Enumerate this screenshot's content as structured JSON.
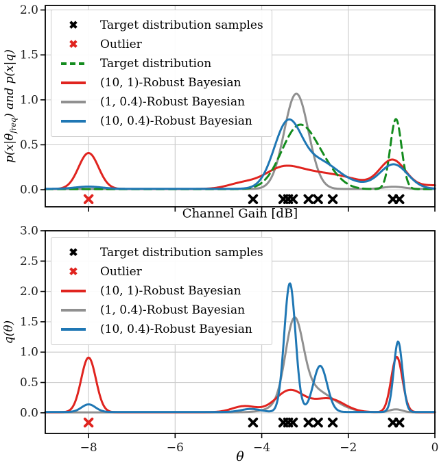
{
  "figure": {
    "top_xlabel": "Channel Gain [dB]",
    "bottom_xlabel": "θ",
    "top_ylabel": {
      "pre": "p(x|θ",
      "sub": "freq",
      "post": ") and p(x|q)"
    },
    "bottom_ylabel": "q(θ)"
  },
  "colors": {
    "red": "#e0241f",
    "gray": "#909090",
    "blue": "#1f77b4",
    "green": "#148c1e",
    "black": "#000000",
    "grid": "#cdcdcd",
    "spine": "#000000",
    "tick_text": "#1c1c1c"
  },
  "chart_data": [
    {
      "id": "top",
      "type": "line",
      "title": "",
      "xlabel": "Channel Gain [dB]",
      "ylabel": "p(x|θ_freq) and p(x|q)",
      "xlim": [
        -9,
        0
      ],
      "ylim": [
        -0.19,
        2.05
      ],
      "xticks": [
        -8,
        -6,
        -4,
        -2,
        0
      ],
      "xtick_labels": null,
      "yticks": [
        0.0,
        0.5,
        1.0,
        1.5,
        2.0
      ],
      "ytick_labels": [
        "0.0",
        "0.5",
        "1.0",
        "1.5",
        "2.0"
      ],
      "grid": true,
      "legend_position": "upper-left",
      "legend": [
        {
          "marker": "x",
          "color": "#000000",
          "label": "Target distribution samples"
        },
        {
          "marker": "x",
          "color": "#e0241f",
          "label": "Outlier"
        },
        {
          "marker": "dash",
          "color": "#148c1e",
          "label": "Target distribution"
        },
        {
          "marker": "line",
          "color": "#e0241f",
          "label": "(10, 1)-Robust Bayesian"
        },
        {
          "marker": "line",
          "color": "#909090",
          "label": "(1, 0.4)-Robust Bayesian"
        },
        {
          "marker": "line",
          "color": "#1f77b4",
          "label": "(10, 0.4)-Robust Bayesian"
        }
      ],
      "series": [
        {
          "name": "(1, 0.4)-Robust Bayesian",
          "color": "#909090",
          "style": "solid",
          "base": 0.008,
          "gaussians": [
            {
              "mu": -3.2,
              "amp": 1.06,
              "sigma": 0.28
            },
            {
              "mu": -0.95,
              "amp": 0.025,
              "sigma": 0.25
            }
          ],
          "peaks": [
            {
              "x": -3.2,
              "y": 1.07
            }
          ]
        },
        {
          "name": "(10, 1)-Robust Bayesian",
          "color": "#e0241f",
          "style": "solid",
          "base": 0.008,
          "gaussians": [
            {
              "mu": -8.0,
              "amp": 0.4,
              "sigma": 0.23
            },
            {
              "mu": -4.45,
              "amp": 0.06,
              "sigma": 0.35
            },
            {
              "mu": -3.55,
              "amp": 0.2,
              "sigma": 0.42
            },
            {
              "mu": -2.7,
              "amp": 0.16,
              "sigma": 0.55
            },
            {
              "mu": -1.9,
              "amp": 0.06,
              "sigma": 0.4
            },
            {
              "mu": -0.98,
              "amp": 0.32,
              "sigma": 0.3
            },
            {
              "mu": 0.0,
              "amp": 0.04,
              "sigma": 0.4
            }
          ],
          "peaks": [
            {
              "x": -8.0,
              "y": 0.4
            },
            {
              "x": -3.5,
              "y": 0.26
            },
            {
              "x": -0.98,
              "y": 0.35
            }
          ]
        },
        {
          "name": "Target distribution",
          "color": "#148c1e",
          "style": "dashed",
          "base": 0.006,
          "gaussians": [
            {
              "mu": -3.15,
              "amp": 0.68,
              "sigma": 0.4
            },
            {
              "mu": -2.55,
              "amp": 0.15,
              "sigma": 0.35
            },
            {
              "mu": -0.9,
              "amp": 0.78,
              "sigma": 0.13
            }
          ],
          "peaks": [
            {
              "x": -3.15,
              "y": 0.72
            },
            {
              "x": -0.9,
              "y": 0.78
            }
          ]
        },
        {
          "name": "(10, 0.4)-Robust Bayesian",
          "color": "#1f77b4",
          "style": "solid",
          "base": 0.01,
          "gaussians": [
            {
              "mu": -8.0,
              "amp": 0.025,
              "sigma": 0.3
            },
            {
              "mu": -3.4,
              "amp": 0.72,
              "sigma": 0.32
            },
            {
              "mu": -2.65,
              "amp": 0.28,
              "sigma": 0.4
            },
            {
              "mu": -1.9,
              "amp": 0.05,
              "sigma": 0.4
            },
            {
              "mu": -0.95,
              "amp": 0.27,
              "sigma": 0.32
            }
          ],
          "peaks": [
            {
              "x": -3.38,
              "y": 0.79
            },
            {
              "x": -0.95,
              "y": 0.3
            }
          ]
        }
      ],
      "samples": {
        "label": "Target distribution samples",
        "color": "#000000",
        "y": -0.105,
        "x": [
          -4.2,
          -3.5,
          -3.39,
          -3.28,
          -2.92,
          -2.7,
          -2.36,
          -0.97,
          -0.82
        ]
      },
      "outlier": {
        "label": "Outlier",
        "color": "#e0241f",
        "x": -8.0,
        "y": -0.105
      }
    },
    {
      "id": "bottom",
      "type": "line",
      "title": "",
      "xlabel": "θ",
      "ylabel": "q(θ)",
      "xlim": [
        -9,
        0
      ],
      "ylim": [
        -0.34,
        3.0
      ],
      "xticks": [
        -8,
        -6,
        -4,
        -2,
        0
      ],
      "xtick_labels": [
        "−8",
        "−6",
        "−4",
        "−2",
        "0"
      ],
      "yticks": [
        0.0,
        0.5,
        1.0,
        1.5,
        2.0,
        2.5,
        3.0
      ],
      "ytick_labels": [
        "0.0",
        "0.5",
        "1.0",
        "1.5",
        "2.0",
        "2.5",
        "3.0"
      ],
      "grid": true,
      "legend_position": "upper-left",
      "legend": [
        {
          "marker": "x",
          "color": "#000000",
          "label": "Target distribution samples"
        },
        {
          "marker": "x",
          "color": "#e0241f",
          "label": "Outlier"
        },
        {
          "marker": "line",
          "color": "#e0241f",
          "label": "(10, 1)-Robust Bayesian"
        },
        {
          "marker": "line",
          "color": "#909090",
          "label": "(1, 0.4)-Robust Bayesian"
        },
        {
          "marker": "line",
          "color": "#1f77b4",
          "label": "(10, 0.4)-Robust Bayesian"
        }
      ],
      "series": [
        {
          "name": "(1, 0.4)-Robust Bayesian",
          "color": "#909090",
          "style": "solid",
          "base": 0.007,
          "gaussians": [
            {
              "mu": -3.25,
              "amp": 1.25,
              "sigma": 0.2
            },
            {
              "mu": -2.9,
              "amp": 0.4,
              "sigma": 0.5
            },
            {
              "mu": -0.9,
              "amp": 0.05,
              "sigma": 0.15
            }
          ],
          "peaks": [
            {
              "x": -3.25,
              "y": 1.57
            }
          ]
        },
        {
          "name": "(10, 1)-Robust Bayesian",
          "color": "#e0241f",
          "style": "solid",
          "base": 0.01,
          "gaussians": [
            {
              "mu": -8.0,
              "amp": 0.9,
              "sigma": 0.17
            },
            {
              "mu": -4.4,
              "amp": 0.1,
              "sigma": 0.28
            },
            {
              "mu": -3.35,
              "amp": 0.36,
              "sigma": 0.33
            },
            {
              "mu": -2.45,
              "amp": 0.22,
              "sigma": 0.35
            },
            {
              "mu": -0.88,
              "amp": 0.91,
              "sigma": 0.13
            }
          ],
          "peaks": [
            {
              "x": -8.0,
              "y": 0.9
            },
            {
              "x": -3.35,
              "y": 0.38
            },
            {
              "x": -0.88,
              "y": 0.92
            }
          ]
        },
        {
          "name": "(10, 0.4)-Robust Bayesian",
          "color": "#1f77b4",
          "style": "solid",
          "base": 0.014,
          "gaussians": [
            {
              "mu": -8.0,
              "amp": 0.125,
              "sigma": 0.16
            },
            {
              "mu": -4.25,
              "amp": 0.05,
              "sigma": 0.22
            },
            {
              "mu": -3.35,
              "amp": 2.12,
              "sigma": 0.13
            },
            {
              "mu": -2.65,
              "amp": 0.76,
              "sigma": 0.16
            },
            {
              "mu": -0.85,
              "amp": 1.16,
              "sigma": 0.1
            }
          ],
          "peaks": [
            {
              "x": -3.35,
              "y": 2.15
            },
            {
              "x": -2.65,
              "y": 0.78
            },
            {
              "x": -0.85,
              "y": 1.18
            }
          ]
        }
      ],
      "samples": {
        "label": "Target distribution samples",
        "color": "#000000",
        "y": -0.16,
        "x": [
          -4.2,
          -3.5,
          -3.39,
          -3.28,
          -2.92,
          -2.7,
          -2.36,
          -0.97,
          -0.82
        ]
      },
      "outlier": {
        "label": "Outlier",
        "color": "#e0241f",
        "x": -8.0,
        "y": -0.16
      }
    }
  ]
}
